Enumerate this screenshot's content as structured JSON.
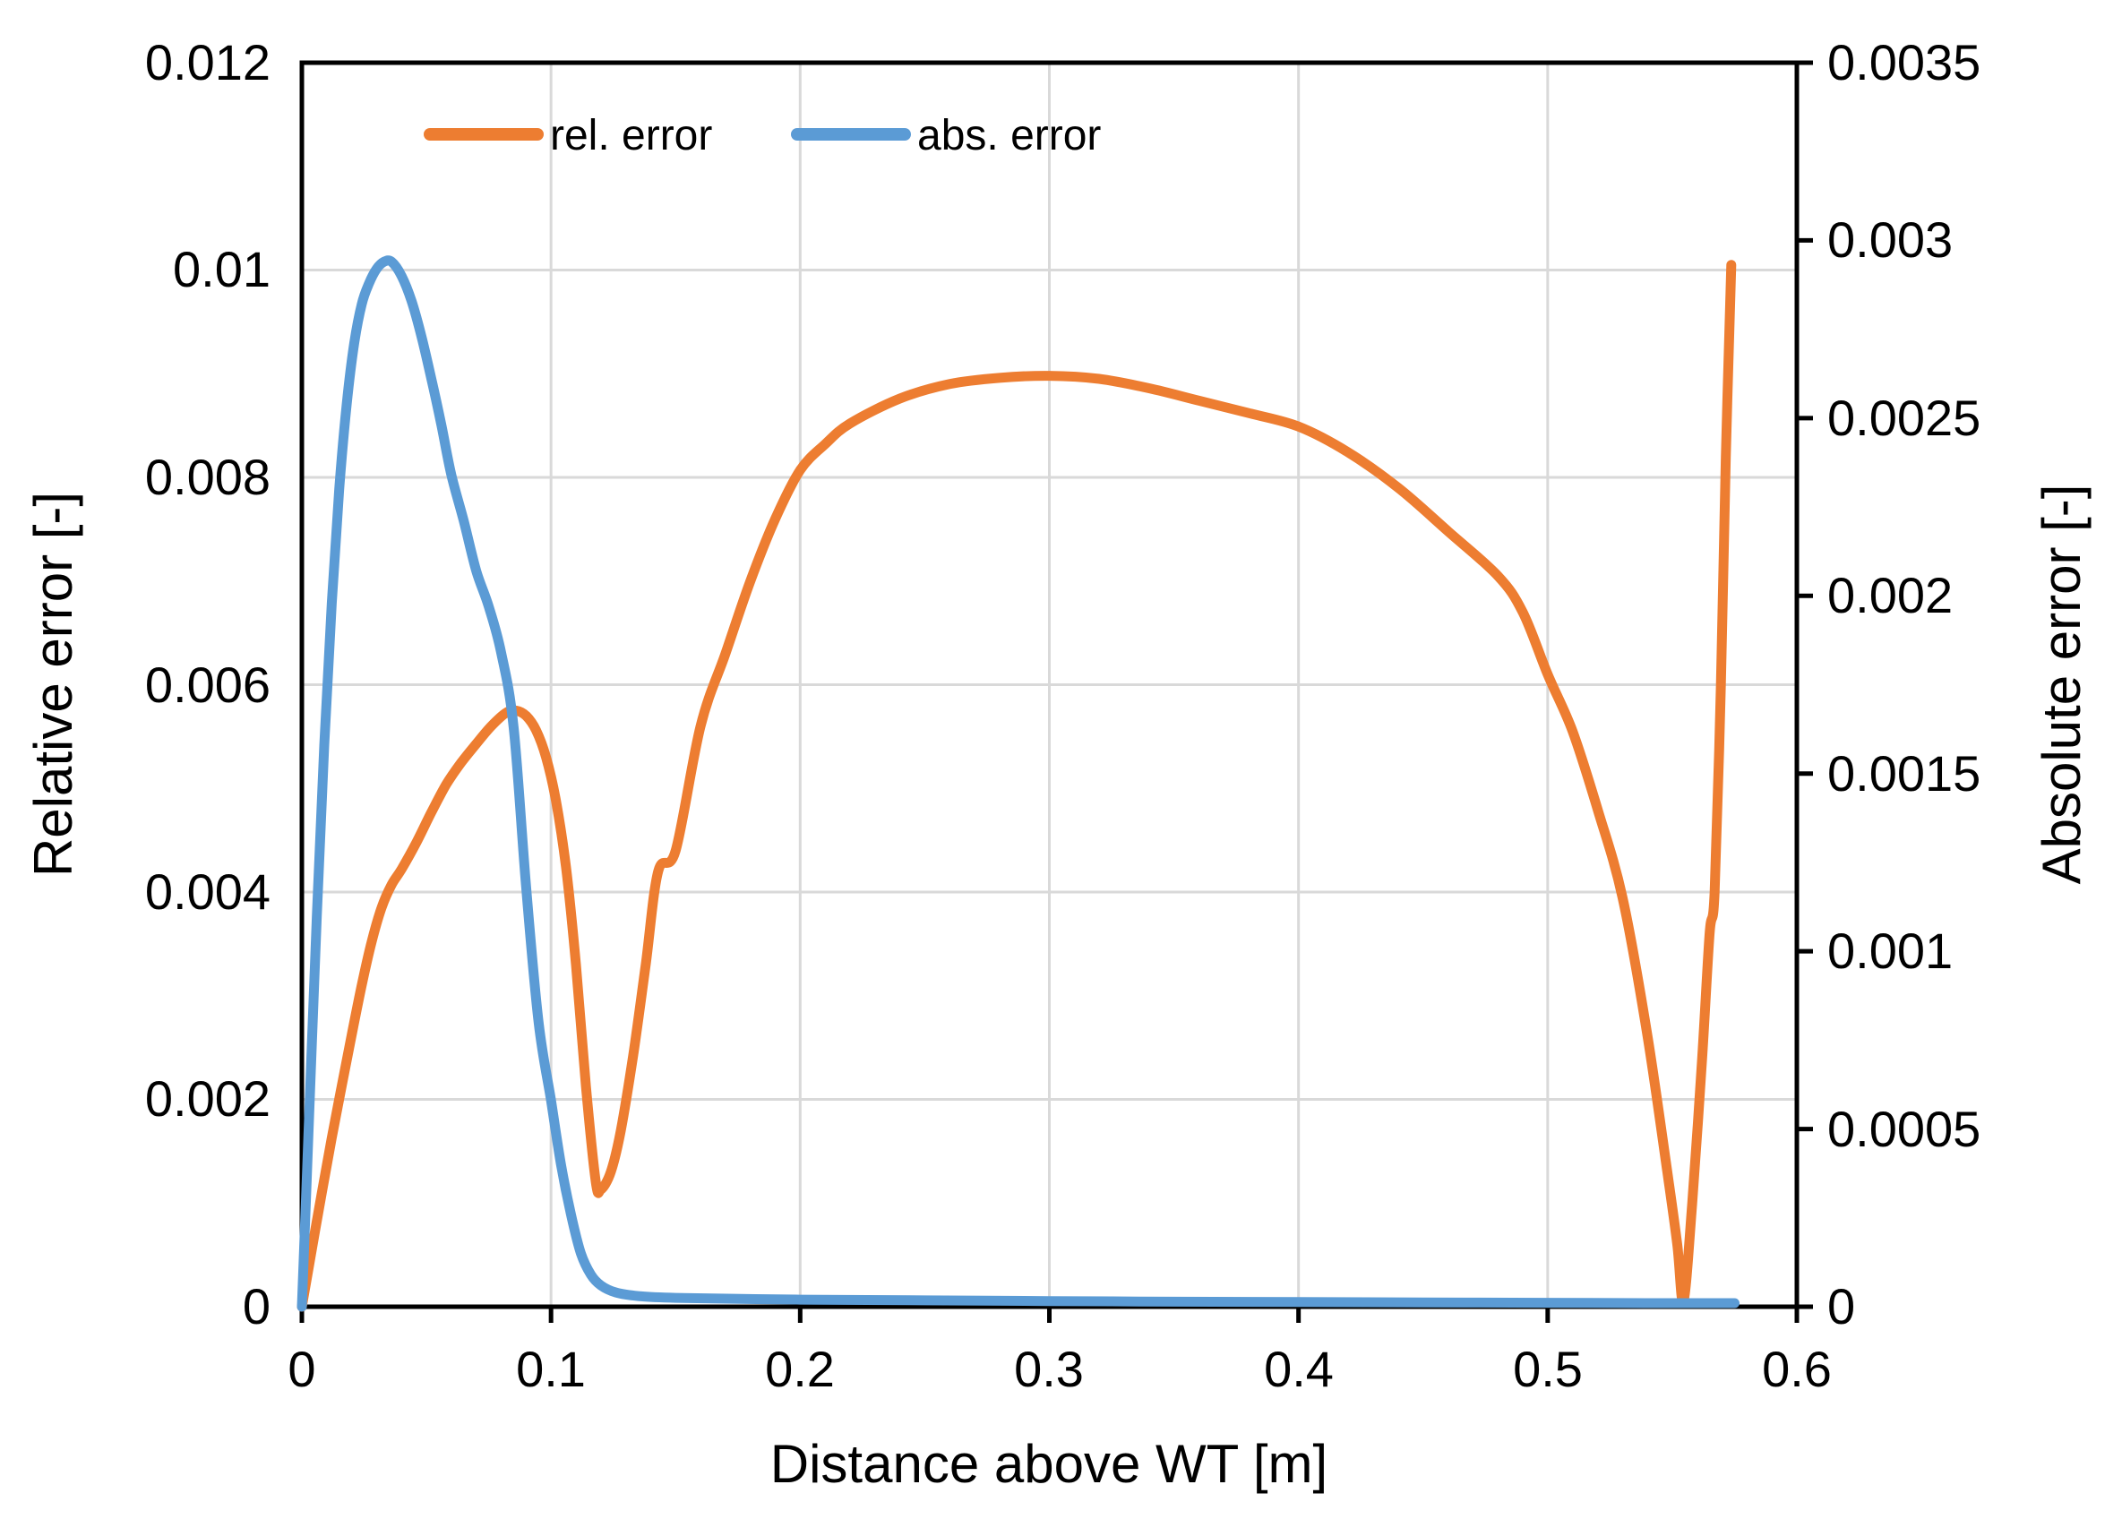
{
  "chart_data": {
    "type": "line",
    "title": "",
    "xlabel": "Distance above WT [m]",
    "ylabel_left": "Relative error [-]",
    "ylabel_right": "Absolute error [-]",
    "grid": true,
    "legend": {
      "position": "top-center-inside",
      "entries": [
        "rel. error",
        "abs. error"
      ]
    },
    "x_axis": {
      "min": 0,
      "max": 0.6,
      "tick_step": 0.1,
      "ticks": [
        "0",
        "0.1",
        "0.2",
        "0.3",
        "0.4",
        "0.5",
        "0.6"
      ],
      "tick_values": [
        0,
        0.1,
        0.2,
        0.3,
        0.4,
        0.5,
        0.6
      ]
    },
    "y_axis_left": {
      "min": 0,
      "max": 0.012,
      "tick_step": 0.002,
      "ticks": [
        "0",
        "0.002",
        "0.004",
        "0.006",
        "0.008",
        "0.01",
        "0.012"
      ],
      "tick_values": [
        0,
        0.002,
        0.004,
        0.006,
        0.008,
        0.01,
        0.012
      ]
    },
    "y_axis_right": {
      "min": 0,
      "max": 0.0035,
      "tick_step": 0.0005,
      "ticks": [
        "0",
        "0.0005",
        "0.001",
        "0.0015",
        "0.002",
        "0.0025",
        "0.003",
        "0.0035"
      ],
      "tick_values": [
        0,
        0.0005,
        0.001,
        0.0015,
        0.002,
        0.0025,
        0.003,
        0.0035
      ]
    },
    "colors": {
      "grid": "#D9D9D9",
      "axis": "#000000",
      "background": "#FFFFFF",
      "rel_error": "#ED7D31",
      "abs_error": "#5B9BD5"
    },
    "series": [
      {
        "name": "rel. error",
        "axis": "left",
        "color": "#ED7D31",
        "points": [
          [
            0.0,
            0.0
          ],
          [
            0.004,
            0.00055
          ],
          [
            0.008,
            0.0011
          ],
          [
            0.012,
            0.00163
          ],
          [
            0.016,
            0.00213
          ],
          [
            0.02,
            0.00262
          ],
          [
            0.024,
            0.0031
          ],
          [
            0.028,
            0.00352
          ],
          [
            0.032,
            0.00385
          ],
          [
            0.036,
            0.00407
          ],
          [
            0.04,
            0.00422
          ],
          [
            0.046,
            0.00448
          ],
          [
            0.052,
            0.00477
          ],
          [
            0.058,
            0.00504
          ],
          [
            0.064,
            0.00525
          ],
          [
            0.07,
            0.00543
          ],
          [
            0.076,
            0.0056
          ],
          [
            0.082,
            0.00573
          ],
          [
            0.086,
            0.00575
          ],
          [
            0.09,
            0.0057
          ],
          [
            0.094,
            0.00556
          ],
          [
            0.098,
            0.0053
          ],
          [
            0.102,
            0.00488
          ],
          [
            0.106,
            0.00424
          ],
          [
            0.11,
            0.0033
          ],
          [
            0.114,
            0.00213
          ],
          [
            0.118,
            0.0012
          ],
          [
            0.12,
            0.00113
          ],
          [
            0.124,
            0.0013
          ],
          [
            0.128,
            0.0017
          ],
          [
            0.133,
            0.00243
          ],
          [
            0.138,
            0.0033
          ],
          [
            0.143,
            0.0042
          ],
          [
            0.15,
            0.0044
          ],
          [
            0.16,
            0.0056
          ],
          [
            0.17,
            0.0063
          ],
          [
            0.18,
            0.007
          ],
          [
            0.19,
            0.0076
          ],
          [
            0.2,
            0.00807
          ],
          [
            0.21,
            0.00832
          ],
          [
            0.22,
            0.00852
          ],
          [
            0.24,
            0.00876
          ],
          [
            0.26,
            0.0089
          ],
          [
            0.28,
            0.00896
          ],
          [
            0.3,
            0.00898
          ],
          [
            0.32,
            0.00895
          ],
          [
            0.34,
            0.00886
          ],
          [
            0.36,
            0.00874
          ],
          [
            0.38,
            0.00862
          ],
          [
            0.4,
            0.00849
          ],
          [
            0.42,
            0.00824
          ],
          [
            0.44,
            0.0079
          ],
          [
            0.46,
            0.00748
          ],
          [
            0.48,
            0.00705
          ],
          [
            0.49,
            0.0067
          ],
          [
            0.5,
            0.0061
          ],
          [
            0.51,
            0.00555
          ],
          [
            0.52,
            0.0048
          ],
          [
            0.53,
            0.00395
          ],
          [
            0.54,
            0.00262
          ],
          [
            0.548,
            0.0013
          ],
          [
            0.552,
            0.0006
          ],
          [
            0.5545,
            5e-05
          ],
          [
            0.558,
            0.001
          ],
          [
            0.562,
            0.0024
          ],
          [
            0.565,
            0.0036
          ],
          [
            0.567,
            0.004
          ],
          [
            0.5695,
            0.006
          ],
          [
            0.5715,
            0.0082
          ],
          [
            0.5737,
            0.01005
          ]
        ]
      },
      {
        "name": "abs. error",
        "axis": "right",
        "color": "#5B9BD5",
        "points": [
          [
            0.0,
            0.0
          ],
          [
            0.003,
            0.00055
          ],
          [
            0.006,
            0.0011
          ],
          [
            0.009,
            0.00158
          ],
          [
            0.012,
            0.00198
          ],
          [
            0.015,
            0.0023
          ],
          [
            0.018,
            0.00254
          ],
          [
            0.021,
            0.00271
          ],
          [
            0.024,
            0.00282
          ],
          [
            0.027,
            0.00288
          ],
          [
            0.03,
            0.00292
          ],
          [
            0.033,
            0.00294
          ],
          [
            0.036,
            0.00294
          ],
          [
            0.04,
            0.0029
          ],
          [
            0.044,
            0.00283
          ],
          [
            0.048,
            0.00273
          ],
          [
            0.052,
            0.00261
          ],
          [
            0.056,
            0.00248
          ],
          [
            0.06,
            0.00234
          ],
          [
            0.065,
            0.00221
          ],
          [
            0.07,
            0.00207
          ],
          [
            0.075,
            0.00197
          ],
          [
            0.08,
            0.00184
          ],
          [
            0.085,
            0.00163
          ],
          [
            0.09,
            0.00118
          ],
          [
            0.095,
            0.0008
          ],
          [
            0.1,
            0.00058
          ],
          [
            0.104,
            0.0004
          ],
          [
            0.108,
            0.00026
          ],
          [
            0.112,
            0.00015
          ],
          [
            0.116,
            9e-05
          ],
          [
            0.12,
            6e-05
          ],
          [
            0.126,
            4e-05
          ],
          [
            0.135,
            3e-05
          ],
          [
            0.15,
            2.5e-05
          ],
          [
            0.2,
            2e-05
          ],
          [
            0.25,
            1.8e-05
          ],
          [
            0.3,
            1.6e-05
          ],
          [
            0.35,
            1.4e-05
          ],
          [
            0.4,
            1.3e-05
          ],
          [
            0.45,
            1.2e-05
          ],
          [
            0.5,
            1.1e-05
          ],
          [
            0.54,
            1e-05
          ],
          [
            0.575,
            1e-05
          ]
        ]
      }
    ]
  }
}
